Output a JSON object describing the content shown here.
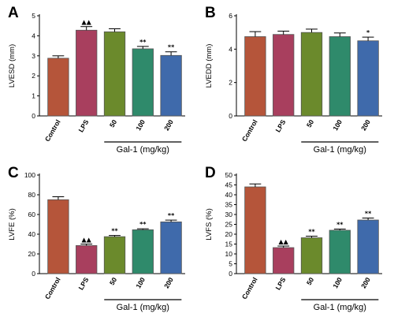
{
  "colors": {
    "bars": [
      "#b5553a",
      "#a83f5e",
      "#6b8a2c",
      "#2f8a6b",
      "#3f6aab"
    ],
    "outline": "#555555"
  },
  "group_line": {
    "from": "50",
    "to": "200",
    "label": "Gal-1 (mg/kg)"
  },
  "chart_data": [
    {
      "panel": "A",
      "type": "bar",
      "categories": [
        "Control",
        "LPS",
        "50",
        "100",
        "200"
      ],
      "values": [
        2.88,
        4.28,
        4.2,
        3.35,
        3.02
      ],
      "errors": [
        0.12,
        0.18,
        0.15,
        0.12,
        0.18
      ],
      "annotations": [
        "",
        "▲▲",
        "",
        "**",
        "**"
      ],
      "ylabel": "LVESD (mm)",
      "ylim": [
        0,
        5
      ],
      "yticks": [
        0,
        1,
        2,
        3,
        4,
        5
      ]
    },
    {
      "panel": "B",
      "type": "bar",
      "categories": [
        "Control",
        "LPS",
        "50",
        "100",
        "200"
      ],
      "values": [
        4.75,
        4.88,
        5.0,
        4.75,
        4.5
      ],
      "errors": [
        0.3,
        0.2,
        0.2,
        0.22,
        0.22
      ],
      "annotations": [
        "",
        "",
        "",
        "",
        "*"
      ],
      "ylabel": "LVEDD (mm)",
      "ylim": [
        0,
        6
      ],
      "yticks": [
        0,
        2,
        4,
        6
      ]
    },
    {
      "panel": "C",
      "type": "bar",
      "categories": [
        "Control",
        "LPS",
        "50",
        "100",
        "200"
      ],
      "values": [
        75.0,
        28.5,
        37.5,
        44.5,
        52.5
      ],
      "errors": [
        3.0,
        1.5,
        1.2,
        1.0,
        1.8
      ],
      "annotations": [
        "",
        "▲▲",
        "**",
        "**",
        "**"
      ],
      "ylabel": "LVFE (%)",
      "ylim": [
        0,
        100
      ],
      "yticks": [
        0,
        20,
        40,
        60,
        80,
        100
      ]
    },
    {
      "panel": "D",
      "type": "bar",
      "categories": [
        "Control",
        "LPS",
        "50",
        "100",
        "200"
      ],
      "values": [
        44.0,
        13.2,
        18.2,
        22.0,
        27.2
      ],
      "errors": [
        1.5,
        0.8,
        0.8,
        0.6,
        1.0
      ],
      "annotations": [
        "",
        "▲▲",
        "**",
        "**",
        "**"
      ],
      "ylabel": "LVFS (%)",
      "ylim": [
        0,
        50
      ],
      "yticks": [
        0,
        5,
        10,
        15,
        20,
        25,
        30,
        35,
        40,
        45,
        50
      ]
    }
  ]
}
